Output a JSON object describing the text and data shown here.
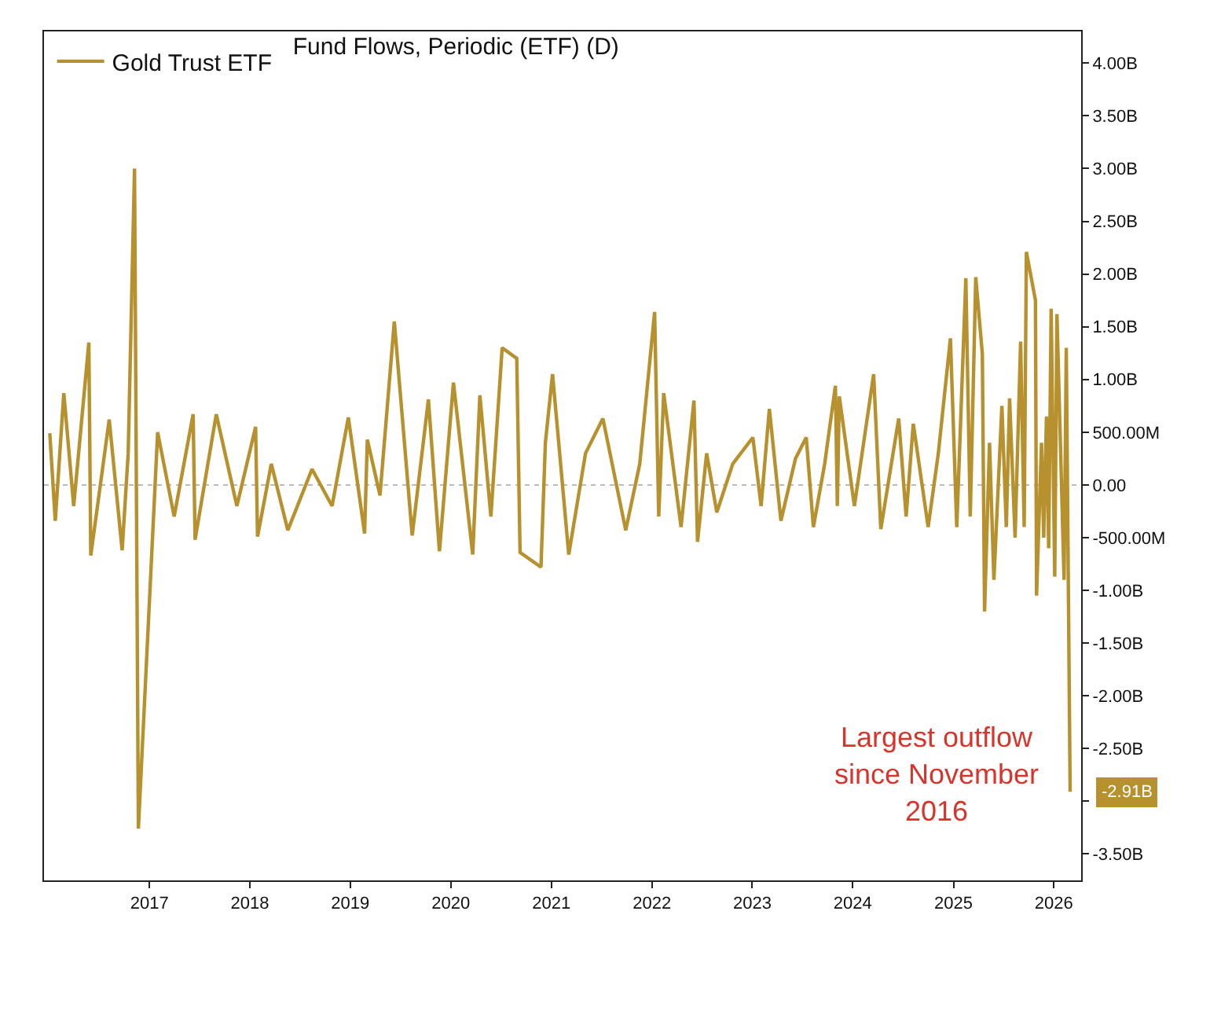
{
  "chart_data": {
    "type": "line",
    "title": "Fund Flows, Periodic (ETF) (D)",
    "x": [
      "2016-01-05",
      "2016-01-25",
      "2016-02-25",
      "2016-04-01",
      "2016-05-26",
      "2016-06-02",
      "2016-08-08",
      "2016-09-24",
      "2016-10-16",
      "2016-11-08",
      "2016-11-22",
      "2017-01-31",
      "2017-04-01",
      "2017-06-09",
      "2017-06-16",
      "2017-09-01",
      "2017-11-15",
      "2018-01-22",
      "2018-01-29",
      "2018-03-20",
      "2018-05-19",
      "2018-08-15",
      "2018-10-27",
      "2018-12-25",
      "2019-02-22",
      "2019-03-04",
      "2019-04-19",
      "2019-06-10",
      "2019-08-14",
      "2019-10-12",
      "2019-11-21",
      "2020-01-11",
      "2020-03-21",
      "2020-04-16",
      "2020-05-26",
      "2020-07-06",
      "2020-08-28",
      "2020-09-09",
      "2020-11-24",
      "2020-12-10",
      "2021-01-05",
      "2021-03-05",
      "2021-05-05",
      "2021-07-07",
      "2021-09-28",
      "2021-11-18",
      "2022-01-11",
      "2022-01-26",
      "2022-02-13",
      "2022-04-17",
      "2022-06-03",
      "2022-06-16",
      "2022-07-19",
      "2022-08-25",
      "2022-10-22",
      "2023-01-03",
      "2023-02-02",
      "2023-03-04",
      "2023-04-15",
      "2023-06-07",
      "2023-07-16",
      "2023-08-11",
      "2023-09-21",
      "2023-10-30",
      "2023-11-06",
      "2023-11-13",
      "2024-01-07",
      "2024-03-17",
      "2024-04-12",
      "2024-06-16",
      "2024-07-13",
      "2024-08-08",
      "2024-10-01",
      "2024-11-07",
      "2024-12-21",
      "2025-01-13",
      "2025-02-15",
      "2025-03-03",
      "2025-03-23",
      "2025-04-16",
      "2025-04-24",
      "2025-05-12",
      "2025-05-28",
      "2025-06-26",
      "2025-07-12",
      "2025-07-24",
      "2025-08-13",
      "2025-09-02",
      "2025-09-15",
      "2025-09-23",
      "2025-10-26",
      "2025-10-30",
      "2025-11-17",
      "2025-11-25",
      "2025-12-05",
      "2025-12-13",
      "2025-12-22",
      "2026-01-04",
      "2026-01-12",
      "2026-02-07",
      "2026-02-15",
      "2026-03-01"
    ],
    "series": [
      {
        "name": "Gold Trust ETF",
        "color": "#b8912f",
        "values": [
          490000000.0,
          -340000000.0,
          870000000.0,
          -200000000.0,
          1350000000.0,
          -670000000.0,
          620000000.0,
          -620000000.0,
          300000000.0,
          3000000000.0,
          -3260000000.0,
          500000000.0,
          -300000000.0,
          670000000.0,
          -520000000.0,
          670000000.0,
          -200000000.0,
          550000000.0,
          -490000000.0,
          200000000.0,
          -430000000.0,
          150000000.0,
          -200000000.0,
          640000000.0,
          -460000000.0,
          430000000.0,
          -100000000.0,
          1550000000.0,
          -480000000.0,
          810000000.0,
          -630000000.0,
          970000000.0,
          -660000000.0,
          850000000.0,
          -300000000.0,
          1300000000.0,
          1200000000.0,
          -640000000.0,
          -780000000.0,
          400000000.0,
          1050000000.0,
          -660000000.0,
          300000000.0,
          630000000.0,
          -430000000.0,
          200000000.0,
          1640000000.0,
          -300000000.0,
          870000000.0,
          -400000000.0,
          800000000.0,
          -540000000.0,
          300000000.0,
          -260000000.0,
          200000000.0,
          450000000.0,
          -200000000.0,
          720000000.0,
          -340000000.0,
          250000000.0,
          450000000.0,
          -400000000.0,
          200000000.0,
          940000000.0,
          -200000000.0,
          840000000.0,
          -200000000.0,
          1050000000.0,
          -420000000.0,
          630000000.0,
          -300000000.0,
          580000000.0,
          -400000000.0,
          300000000.0,
          1390000000.0,
          -400000000.0,
          1960000000.0,
          -300000000.0,
          1970000000.0,
          1240000000.0,
          -1200000000.0,
          400000000.0,
          -900000000.0,
          750000000.0,
          -400000000.0,
          820000000.0,
          -500000000.0,
          1360000000.0,
          -400000000.0,
          2210000000.0,
          1750000000.0,
          -1050000000.0,
          400000000.0,
          -500000000.0,
          650000000.0,
          -600000000.0,
          1670000000.0,
          -870000000.0,
          1620000000.0,
          -900000000.0,
          1300000000.0,
          -2910000000.0
        ]
      }
    ],
    "xlim": [
      "2015-12-15",
      "2026-04-10"
    ],
    "xticks": [
      {
        "value": "2017-01-01",
        "label": "2017"
      },
      {
        "value": "2018-01-01",
        "label": "2018"
      },
      {
        "value": "2019-01-01",
        "label": "2019"
      },
      {
        "value": "2020-01-01",
        "label": "2020"
      },
      {
        "value": "2021-01-01",
        "label": "2021"
      },
      {
        "value": "2022-01-01",
        "label": "2022"
      },
      {
        "value": "2023-01-01",
        "label": "2023"
      },
      {
        "value": "2024-01-01",
        "label": "2024"
      },
      {
        "value": "2025-01-01",
        "label": "2025"
      },
      {
        "value": "2026-01-01",
        "label": "2026"
      }
    ],
    "ylim": [
      -3750000000.0,
      4300000000.0
    ],
    "yticks": [
      {
        "value": 4000000000.0,
        "label": "4.00B"
      },
      {
        "value": 3500000000.0,
        "label": "3.50B"
      },
      {
        "value": 3000000000.0,
        "label": "3.00B"
      },
      {
        "value": 2500000000.0,
        "label": "2.50B"
      },
      {
        "value": 2000000000.0,
        "label": "2.00B"
      },
      {
        "value": 1500000000.0,
        "label": "1.50B"
      },
      {
        "value": 1000000000.0,
        "label": "1.00B"
      },
      {
        "value": 500000000.0,
        "label": "500.00M"
      },
      {
        "value": 0,
        "label": "0.00"
      },
      {
        "value": -500000000.0,
        "label": "-500.00M"
      },
      {
        "value": -1000000000.0,
        "label": "-1.00B"
      },
      {
        "value": -1500000000.0,
        "label": "-1.50B"
      },
      {
        "value": -2000000000.0,
        "label": "-2.00B"
      },
      {
        "value": -2500000000.0,
        "label": "-2.50B"
      },
      {
        "value": -3000000000.0,
        "label": null
      },
      {
        "value": -3500000000.0,
        "label": "-3.50B"
      }
    ],
    "ref_lines": [
      {
        "axis": "y",
        "value": 0,
        "color": "#bbbbbb",
        "line_style": "dotted"
      }
    ],
    "annotations": [
      "Largest outflow\nsince November\n2016",
      {
        "text": "-2.91B",
        "x": "2026-03-01",
        "y": -2910000000.0
      }
    ],
    "legend": "top left",
    "grid": false,
    "marker": "none",
    "line_style": "solid"
  }
}
